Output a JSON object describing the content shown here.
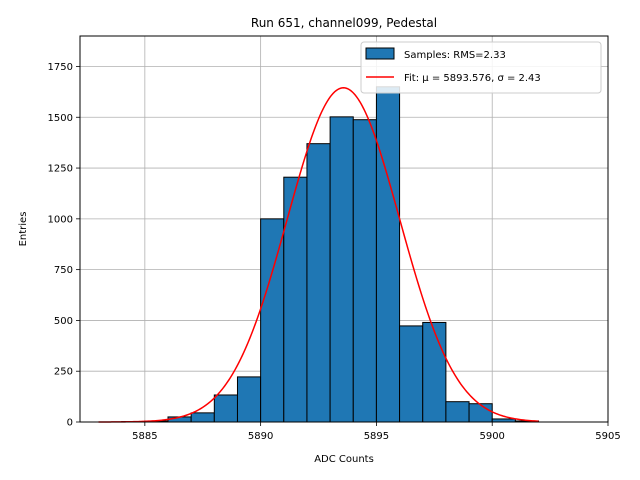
{
  "chart_data": {
    "type": "bar",
    "title": "Run 651, channel099, Pedestal",
    "xlabel": "ADC Counts",
    "ylabel": "Entries",
    "xlim": [
      5882.2,
      5905.0
    ],
    "ylim": [
      0,
      1900
    ],
    "xticks": [
      5885,
      5890,
      5895,
      5900,
      5905
    ],
    "yticks": [
      0,
      250,
      500,
      750,
      1000,
      1250,
      1500,
      1750
    ],
    "grid": true,
    "legend_position": "top-right",
    "histogram": {
      "name": "Samples: RMS=2.33",
      "color": "#1f77b4",
      "bin_edges": [
        5883,
        5884,
        5885,
        5886,
        5887,
        5888,
        5889,
        5890,
        5891,
        5892,
        5893,
        5894,
        5895,
        5896,
        5897,
        5898,
        5899,
        5900,
        5901,
        5902
      ],
      "counts": [
        0,
        2,
        5,
        25,
        45,
        133,
        222,
        1000,
        1205,
        1370,
        1502,
        1488,
        1650,
        473,
        490,
        100,
        90,
        15,
        5
      ]
    },
    "fit": {
      "name": "Fit: μ = 5893.576, σ = 2.43",
      "color": "#ff0000",
      "mu": 5893.576,
      "sigma": 2.43,
      "peak": 1645,
      "x_range": [
        5883,
        5902
      ]
    }
  }
}
